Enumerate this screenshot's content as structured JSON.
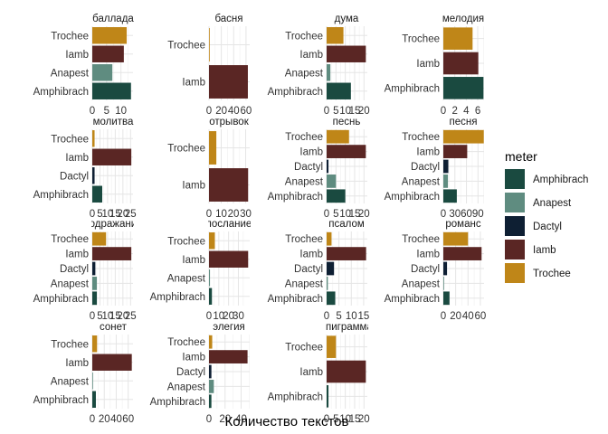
{
  "chart_data": {
    "type": "bar",
    "orientation": "horizontal",
    "xlabel": "Количество текстов",
    "ylabel": "",
    "grid": true,
    "legend": {
      "title": "meter",
      "position": "right",
      "items": [
        {
          "name": "Amphibrach",
          "color": "#1a4a40"
        },
        {
          "name": "Anapest",
          "color": "#5f8c80"
        },
        {
          "name": "Dactyl",
          "color": "#0e1f33"
        },
        {
          "name": "Iamb",
          "color": "#5a2624"
        },
        {
          "name": "Trochee",
          "color": "#bf8618"
        }
      ]
    },
    "panels": [
      {
        "title": "баллада",
        "xlim": [
          0,
          14.2
        ],
        "ticks": [
          0,
          5,
          10
        ],
        "bars": [
          {
            "meter": "Trochee",
            "value": 12
          },
          {
            "meter": "Iamb",
            "value": 11
          },
          {
            "meter": "Anapest",
            "value": 7
          },
          {
            "meter": "Amphibrach",
            "value": 13.5
          }
        ]
      },
      {
        "title": "басня",
        "xlim": [
          0,
          66
        ],
        "ticks": [
          0,
          20,
          40,
          60
        ],
        "bars": [
          {
            "meter": "Trochee",
            "value": 1
          },
          {
            "meter": "Iamb",
            "value": 63
          }
        ]
      },
      {
        "title": "дума",
        "xlim": [
          0,
          21.8
        ],
        "ticks": [
          0,
          5,
          10,
          15,
          20
        ],
        "bars": [
          {
            "meter": "Trochee",
            "value": 9
          },
          {
            "meter": "Iamb",
            "value": 21
          },
          {
            "meter": "Anapest",
            "value": 2
          },
          {
            "meter": "Amphibrach",
            "value": 13
          }
        ]
      },
      {
        "title": "мелодия",
        "xlim": [
          0,
          7.1
        ],
        "ticks": [
          0,
          2,
          4,
          6
        ],
        "bars": [
          {
            "meter": "Trochee",
            "value": 5.1
          },
          {
            "meter": "Iamb",
            "value": 6.1
          },
          {
            "meter": "Amphibrach",
            "value": 7
          }
        ]
      },
      {
        "title": "молитва",
        "xlim": [
          0,
          26.6
        ],
        "ticks": [
          0,
          5,
          10,
          15,
          20,
          25
        ],
        "bars": [
          {
            "meter": "Trochee",
            "value": 1.5
          },
          {
            "meter": "Iamb",
            "value": 25.5
          },
          {
            "meter": "Dactyl",
            "value": 1.5
          },
          {
            "meter": "Amphibrach",
            "value": 6.5
          }
        ]
      },
      {
        "title": "отрывок",
        "xlim": [
          0,
          33.3
        ],
        "ticks": [
          0,
          10,
          20,
          30
        ],
        "bars": [
          {
            "meter": "Trochee",
            "value": 6
          },
          {
            "meter": "Iamb",
            "value": 32
          }
        ]
      },
      {
        "title": "песнь",
        "xlim": [
          0,
          21.8
        ],
        "ticks": [
          0,
          5,
          10,
          15,
          20
        ],
        "bars": [
          {
            "meter": "Trochee",
            "value": 12
          },
          {
            "meter": "Iamb",
            "value": 21
          },
          {
            "meter": "Dactyl",
            "value": 1
          },
          {
            "meter": "Anapest",
            "value": 5
          },
          {
            "meter": "Amphibrach",
            "value": 10
          }
        ]
      },
      {
        "title": "песня",
        "xlim": [
          0,
          105.7
        ],
        "ticks": [
          0,
          30,
          60,
          90
        ],
        "bars": [
          {
            "meter": "Trochee",
            "value": 105
          },
          {
            "meter": "Iamb",
            "value": 62
          },
          {
            "meter": "Dactyl",
            "value": 13
          },
          {
            "meter": "Anapest",
            "value": 12
          },
          {
            "meter": "Amphibrach",
            "value": 35
          }
        ]
      },
      {
        "title": "подражание",
        "xlim": [
          0,
          26.6
        ],
        "ticks": [
          0,
          5,
          10,
          15,
          20,
          25
        ],
        "bars": [
          {
            "meter": "Trochee",
            "value": 9
          },
          {
            "meter": "Iamb",
            "value": 25.5
          },
          {
            "meter": "Dactyl",
            "value": 2
          },
          {
            "meter": "Anapest",
            "value": 3
          },
          {
            "meter": "Amphibrach",
            "value": 3
          }
        ]
      },
      {
        "title": "послание",
        "xlim": [
          0,
          41.6
        ],
        "ticks": [
          0,
          10,
          20,
          30
        ],
        "bars": [
          {
            "meter": "Trochee",
            "value": 6
          },
          {
            "meter": "Iamb",
            "value": 40
          },
          {
            "meter": "Anapest",
            "value": 1
          },
          {
            "meter": "Amphibrach",
            "value": 3
          }
        ]
      },
      {
        "title": "псалом",
        "xlim": [
          0,
          16.5
        ],
        "ticks": [
          0,
          5,
          10,
          15
        ],
        "bars": [
          {
            "meter": "Trochee",
            "value": 2
          },
          {
            "meter": "Iamb",
            "value": 16
          },
          {
            "meter": "Dactyl",
            "value": 3
          },
          {
            "meter": "Anapest",
            "value": 0.5
          },
          {
            "meter": "Amphibrach",
            "value": 3.5
          }
        ]
      },
      {
        "title": "романс",
        "xlim": [
          0,
          66
        ],
        "ticks": [
          0,
          20,
          40,
          60
        ],
        "bars": [
          {
            "meter": "Trochee",
            "value": 40
          },
          {
            "meter": "Iamb",
            "value": 62
          },
          {
            "meter": "Dactyl",
            "value": 6
          },
          {
            "meter": "Anapest",
            "value": 1
          },
          {
            "meter": "Amphibrach",
            "value": 10
          }
        ]
      },
      {
        "title": "сонет",
        "xlim": [
          0,
          68
        ],
        "ticks": [
          0,
          20,
          40,
          60
        ],
        "bars": [
          {
            "meter": "Trochee",
            "value": 8
          },
          {
            "meter": "Iamb",
            "value": 66
          },
          {
            "meter": "Anapest",
            "value": 1
          },
          {
            "meter": "Amphibrach",
            "value": 6
          }
        ]
      },
      {
        "title": "элегия",
        "xlim": [
          0,
          50.7
        ],
        "ticks": [
          0,
          20,
          40
        ],
        "bars": [
          {
            "meter": "Trochee",
            "value": 4
          },
          {
            "meter": "Iamb",
            "value": 48
          },
          {
            "meter": "Dactyl",
            "value": 3
          },
          {
            "meter": "Anapest",
            "value": 6
          },
          {
            "meter": "Amphibrach",
            "value": 3
          }
        ]
      },
      {
        "title": "эпиграмма",
        "xlim": [
          0,
          21.8
        ],
        "ticks": [
          0,
          5,
          10,
          15,
          20
        ],
        "bars": [
          {
            "meter": "Trochee",
            "value": 5
          },
          {
            "meter": "Iamb",
            "value": 21
          },
          {
            "meter": "Amphibrach",
            "value": 1
          }
        ]
      }
    ]
  }
}
